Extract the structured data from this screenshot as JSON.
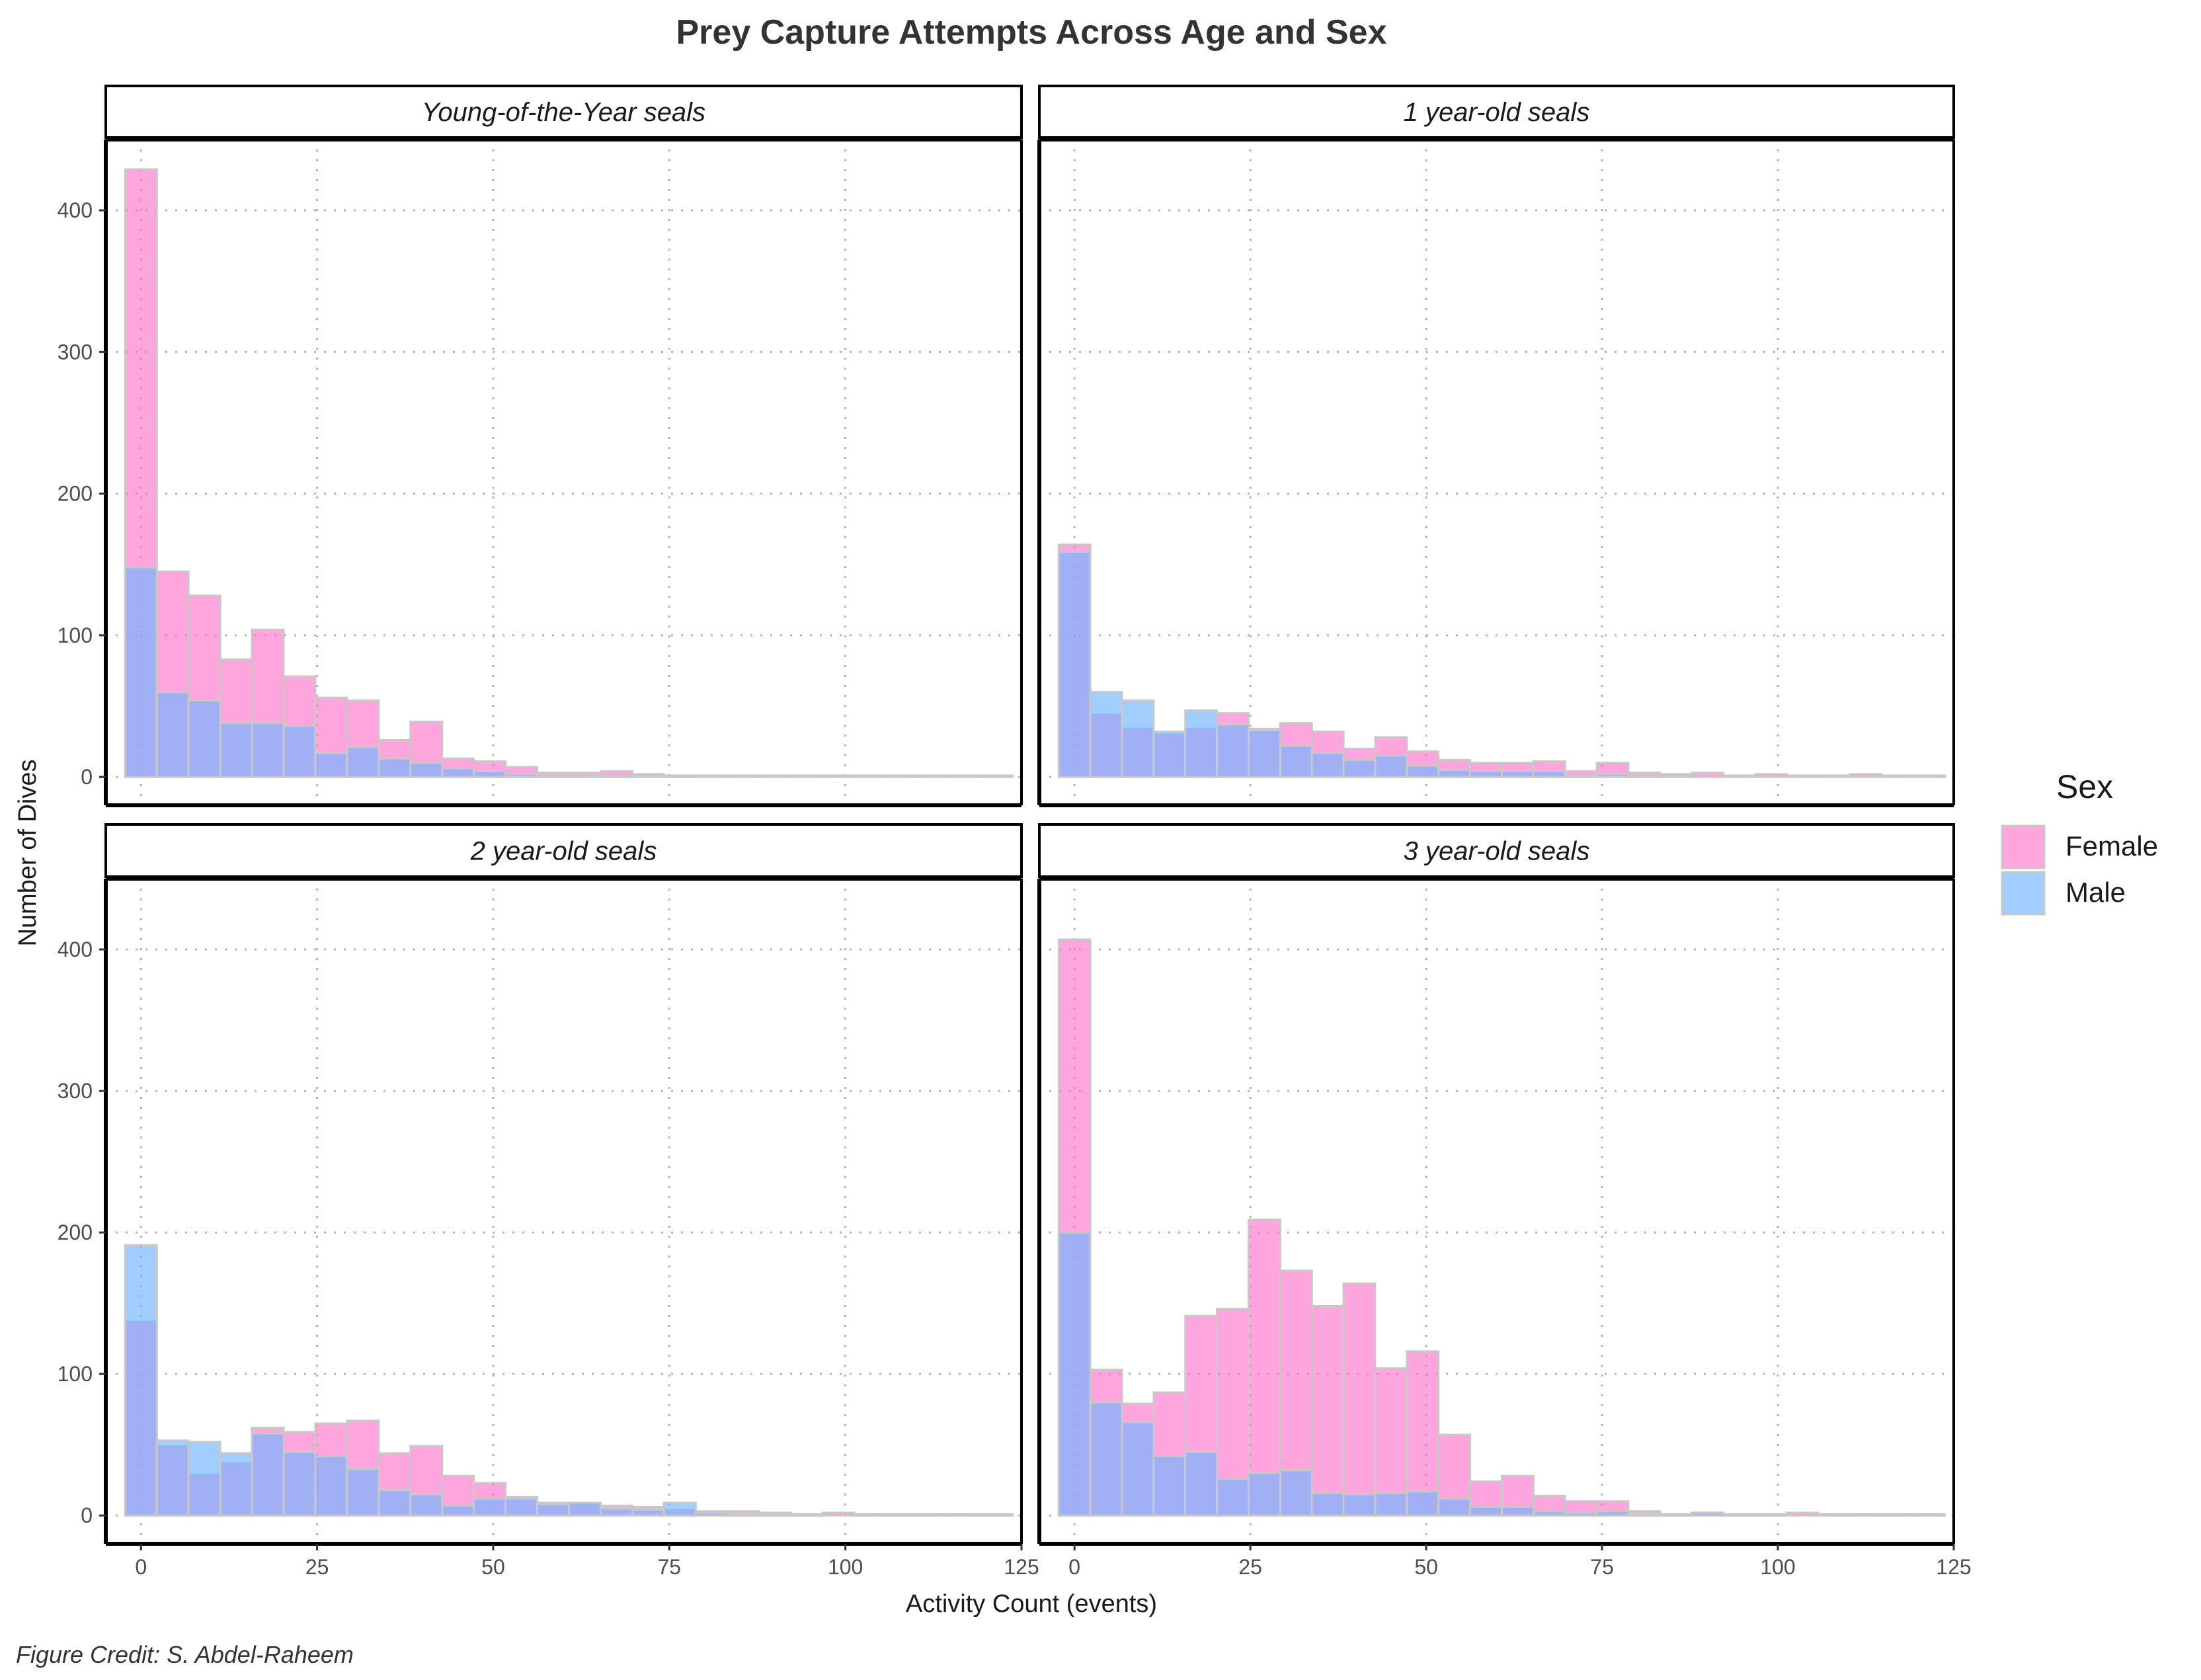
{
  "chart_data": {
    "type": "bar",
    "title": "Prey Capture Attempts Across Age and Sex",
    "xlabel": "Activity Count (events)",
    "ylabel": "Number of Dives",
    "caption": "Figure Credit: S. Abdel-Raheem",
    "xlim": [
      -5,
      125
    ],
    "ylim": [
      -20,
      450
    ],
    "x_ticks": [
      "0",
      "25",
      "50",
      "75",
      "100",
      "125"
    ],
    "x_tick_values": [
      0,
      25,
      50,
      75,
      100,
      125
    ],
    "y_ticks": [
      "0",
      "100",
      "200",
      "300",
      "400"
    ],
    "y_tick_values": [
      0,
      100,
      200,
      300,
      400
    ],
    "grid": true,
    "stacking": "overlay",
    "bin_width": 4.5,
    "bin_centers": [
      0,
      4.5,
      9,
      13.5,
      18,
      22.5,
      27,
      31.5,
      36,
      40.5,
      45,
      49.5,
      54,
      58.5,
      63,
      67.5,
      72,
      76.5,
      81,
      85.5,
      90,
      94.5,
      99,
      103.5,
      108,
      112.5,
      117,
      121.5
    ],
    "legend": {
      "title": "Sex",
      "position": "right",
      "entries": [
        {
          "name": "Female",
          "color": "#FF69C8"
        },
        {
          "name": "Male",
          "color": "#6EB4FF"
        }
      ]
    },
    "colors": {
      "female": "#FF69C8",
      "male": "#6EB4FF",
      "bar_outline": "#C8C8C8",
      "female_alpha": 0.6,
      "male_alpha": 0.65
    },
    "facets": [
      {
        "label": "Young-of-the-Year seals",
        "series": [
          {
            "name": "Female",
            "values": [
              429,
              145,
              128,
              83,
              104,
              71,
              56,
              54,
              26,
              39,
              13,
              11,
              7,
              3,
              3,
              4,
              2,
              1,
              1,
              1,
              1,
              1,
              1,
              1,
              1,
              1,
              1,
              1
            ]
          },
          {
            "name": "Male",
            "values": [
              148,
              60,
              54,
              38,
              38,
              36,
              17,
              21,
              13,
              10,
              6,
              4,
              2,
              1,
              1,
              1,
              1,
              1,
              0,
              0,
              0,
              0,
              0,
              0,
              0,
              0,
              0,
              0
            ]
          }
        ]
      },
      {
        "label": "1 year-old seals",
        "series": [
          {
            "name": "Female",
            "values": [
              164,
              44,
              34,
              30,
              34,
              45,
              34,
              38,
              32,
              20,
              28,
              18,
              12,
              10,
              10,
              11,
              4,
              10,
              3,
              2,
              3,
              1,
              2,
              1,
              1,
              2,
              1,
              1
            ]
          },
          {
            "name": "Male",
            "values": [
              159,
              60,
              54,
              32,
              47,
              37,
              33,
              22,
              17,
              12,
              15,
              8,
              5,
              4,
              4,
              4,
              1,
              2,
              1,
              1,
              0,
              0,
              0,
              0,
              0,
              0,
              0,
              0
            ]
          }
        ]
      },
      {
        "label": "2 year-old seals",
        "series": [
          {
            "name": "Female",
            "values": [
              137,
              49,
              29,
              37,
              62,
              59,
              65,
              67,
              44,
              49,
              28,
              23,
              13,
              9,
              8,
              7,
              6,
              4,
              3,
              3,
              2,
              1,
              2,
              1,
              1,
              1,
              1,
              1
            ]
          },
          {
            "name": "Male",
            "values": [
              191,
              53,
              52,
              44,
              58,
              45,
              42,
              33,
              18,
              15,
              7,
              12,
              12,
              8,
              9,
              5,
              4,
              9,
              2,
              1,
              1,
              1,
              0,
              0,
              0,
              0,
              0,
              0
            ]
          }
        ]
      },
      {
        "label": "3 year-old seals",
        "series": [
          {
            "name": "Female",
            "values": [
              407,
              103,
              79,
              87,
              141,
              146,
              209,
              173,
              148,
              164,
              104,
              116,
              57,
              24,
              28,
              14,
              10,
              10,
              3,
              1,
              2,
              1,
              1,
              2,
              1,
              1,
              1,
              1
            ]
          },
          {
            "name": "Male",
            "values": [
              200,
              80,
              66,
              42,
              45,
              26,
              30,
              32,
              16,
              15,
              16,
              17,
              12,
              6,
              6,
              3,
              2,
              3,
              1,
              1,
              2,
              0,
              0,
              0,
              0,
              0,
              0,
              0
            ]
          }
        ]
      }
    ]
  }
}
